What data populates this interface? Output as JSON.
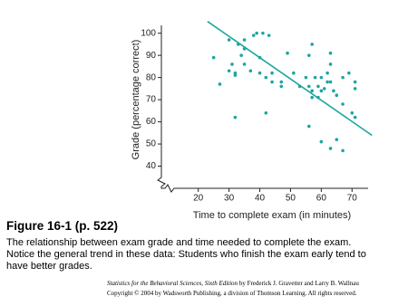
{
  "chart_data": {
    "type": "scatter",
    "y_label": "Grade (percentage correct)",
    "x_label": "Time to complete exam (in minutes)",
    "color": "#1ba6a0",
    "line_color": "#1ba6a0",
    "xlim": [
      8,
      77
    ],
    "ylim": [
      30,
      106
    ],
    "xticks": [
      20,
      30,
      40,
      50,
      60,
      70
    ],
    "yticks": [
      40,
      50,
      60,
      70,
      80,
      90,
      100
    ],
    "x": [
      25,
      27,
      30,
      30,
      31,
      32,
      32,
      33,
      34,
      35,
      35,
      35,
      32,
      37,
      38,
      39,
      40,
      40,
      41,
      42,
      43,
      42,
      44,
      44,
      47,
      47,
      49,
      51,
      53,
      55,
      56,
      56,
      57,
      57,
      57,
      58,
      59,
      59,
      60,
      60,
      56,
      61,
      62,
      62,
      63,
      63,
      63,
      64,
      65,
      60,
      63,
      65,
      67,
      67,
      67,
      70,
      71,
      71,
      71,
      69
    ],
    "y": [
      89,
      77,
      97,
      83,
      86,
      81,
      82,
      95,
      90,
      97,
      93,
      86,
      62,
      83,
      99,
      100,
      89,
      82,
      100,
      80,
      99,
      64,
      82,
      78,
      76,
      78,
      91,
      82,
      76,
      80,
      76,
      90,
      95,
      74,
      71,
      80,
      76,
      71,
      80,
      74,
      58,
      75,
      82,
      78,
      86,
      91,
      78,
      74,
      72,
      51,
      48,
      52,
      47,
      68,
      80,
      64,
      62,
      78,
      75,
      82
    ],
    "trend_line": {
      "x": [
        23,
        76.5
      ],
      "y": [
        105.3,
        53.9
      ]
    }
  },
  "caption": {
    "title": "Figure 16-1  (p. 522)",
    "lines": [
      "The relationship between exam grade and time needed to complete the exam.",
      "Notice the general trend in these data: Students who finish the exam early tend to",
      "have better grades."
    ],
    "credit_italic": "Statistics for the Behavioral Sciences, Sixth Edition",
    "credit_rest": " by Frederick J. Gravetter and Larry B. Wallnau",
    "copyright": "Copyright © 2004 by Wadsworth Publishing, a division of Thomson Learning.  All rights reserved."
  }
}
